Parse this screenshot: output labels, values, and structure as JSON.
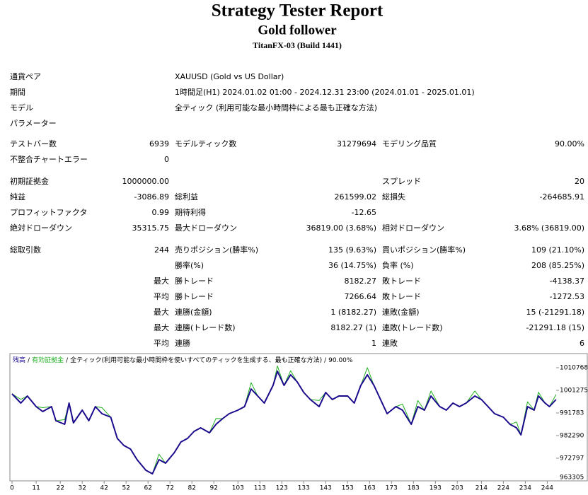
{
  "header": {
    "title": "Strategy Tester Report",
    "subtitle": "Gold follower",
    "build": "TitanFX-03 (Build 1441)"
  },
  "rows": [
    [
      "通貨ペア",
      null,
      "XAUUSD (Gold vs US Dollar)",
      null,
      null,
      null
    ],
    [
      "期間",
      null,
      "1時間足(H1) 2024.01.02 01:00 - 2024.12.31 23:00 (2024.01.01 - 2025.01.01)",
      null,
      null,
      null
    ],
    [
      "モデル",
      null,
      "全ティック (利用可能な最小時間枠による最も正確な方法)",
      null,
      null,
      null
    ],
    [
      "パラメーター",
      null,
      null,
      null,
      null,
      null
    ],
    [
      "テストバー数",
      "6939",
      "モデルティック数",
      "31279694",
      "モデリング品質",
      "90.00%"
    ],
    [
      "不整合チャートエラー",
      "0",
      null,
      null,
      null,
      null
    ],
    [
      "初期証拠金",
      "1000000.00",
      null,
      null,
      "スプレッド",
      "20"
    ],
    [
      "純益",
      "-3086.89",
      "総利益",
      "261599.02",
      "総損失",
      "-264685.91"
    ],
    [
      "プロフィットファクタ",
      "0.99",
      "期待利得",
      "-12.65",
      null,
      null
    ],
    [
      "絶対ドローダウン",
      "35315.75",
      "最大ドローダウン",
      "36819.00 (3.68%)",
      "相対ドローダウン",
      "3.68% (36819.00)"
    ],
    [
      "総取引数",
      "244",
      "売りポジション(勝率%)",
      "135 (9.63%)",
      "買いポジション(勝率%)",
      "109 (21.10%)"
    ],
    [
      null,
      null,
      "勝率(%)",
      "36 (14.75%)",
      "負率 (%)",
      "208 (85.25%)"
    ],
    [
      null,
      "最大",
      "勝トレード",
      "8182.27",
      "敗トレード",
      "-4138.37"
    ],
    [
      null,
      "平均",
      "勝トレード",
      "7266.64",
      "敗トレード",
      "-1272.53"
    ],
    [
      null,
      "最大",
      "連勝(金額)",
      "1 (8182.27)",
      "連敗(金額)",
      "15 (-21291.18)"
    ],
    [
      null,
      "最大",
      "連勝(トレード数)",
      "8182.27 (1)",
      "連敗(トレード数)",
      "-21291.18 (15)"
    ],
    [
      null,
      "平均",
      "連勝",
      "1",
      "連敗",
      "6"
    ]
  ],
  "chart_data": {
    "type": "line",
    "legend_separator": "/",
    "legend_description": "全ティック(利用可能な最小時間枠を使いすべてのティックを生成する、最も正確な方法)",
    "legend_quality": "90.00%",
    "x": [
      0,
      4,
      7,
      11,
      14,
      18,
      20,
      24,
      26,
      28,
      32,
      35,
      38,
      41,
      45,
      48,
      51,
      54,
      57,
      61,
      64,
      67,
      70,
      74,
      77,
      80,
      83,
      86,
      90,
      93,
      96,
      99,
      103,
      106,
      109,
      112,
      115,
      119,
      121,
      124,
      127,
      130,
      133,
      136,
      140,
      143,
      146,
      149,
      153,
      156,
      159,
      162,
      165,
      168,
      171,
      175,
      178,
      182,
      185,
      188,
      191,
      195,
      198,
      201,
      204,
      207,
      211,
      214,
      217,
      220,
      224,
      227,
      230,
      232,
      235,
      238,
      240,
      243,
      245,
      248
    ],
    "series": [
      {
        "name": "残高",
        "color": "#1a0a8c",
        "values": [
          999787,
          995931,
          998897,
          994448,
          992372,
          994448,
          988516,
          987033,
          995931,
          987626,
          992965,
          988516,
          994448,
          991482,
          989999,
          981101,
          978135,
          976652,
          972203,
          967754,
          966271,
          972203,
          970720,
          975169,
          979618,
          981101,
          984067,
          985550,
          983474,
          987033,
          989406,
          991482,
          992965,
          994448,
          1001863,
          998897,
          995931,
          1003346,
          1009278,
          1003346,
          1007795,
          1004829,
          1000380,
          997414,
          994448,
          1000380,
          997414,
          998897,
          998897,
          995931,
          1003346,
          1007795,
          1003346,
          997414,
          991482,
          994448,
          992965,
          987033,
          994448,
          992965,
          998897,
          994448,
          992965,
          995931,
          994448,
          995931,
          998897,
          997414,
          994448,
          991482,
          989999,
          987033,
          985550,
          982584,
          994448,
          992965,
          998897,
          995931,
          994448,
          997414
        ]
      },
      {
        "name": "有効証拠金",
        "color": "#22b022",
        "values": [
          999787,
          997500,
          998897,
          994448,
          994000,
          994448,
          988516,
          989000,
          995931,
          987626,
          992965,
          988516,
          994448,
          994000,
          989999,
          981101,
          978135,
          976652,
          972203,
          967754,
          966271,
          974500,
          970720,
          975169,
          979618,
          981101,
          984067,
          985550,
          983474,
          989500,
          989406,
          991482,
          992965,
          994448,
          1004500,
          998897,
          995931,
          1003346,
          1011500,
          1003346,
          1009500,
          1004829,
          1000380,
          997414,
          997000,
          1000380,
          997414,
          998897,
          998897,
          995931,
          1003346,
          1010800,
          1003346,
          997414,
          991482,
          994448,
          995500,
          987033,
          997000,
          992965,
          1001000,
          994448,
          992965,
          995931,
          994448,
          995931,
          1001000,
          997414,
          994448,
          991482,
          989999,
          987033,
          988000,
          982584,
          996500,
          992965,
          1000500,
          995931,
          994448,
          999500
        ]
      }
    ],
    "xlim": [
      0,
      250
    ],
    "xticks": [
      0,
      11,
      22,
      32,
      42,
      52,
      62,
      72,
      82,
      92,
      103,
      113,
      123,
      133,
      143,
      153,
      163,
      173,
      183,
      193,
      203,
      214,
      224,
      234,
      244
    ],
    "ylim": [
      963305,
      1016700
    ],
    "yticks": [
      963305,
      972797,
      982290,
      991783,
      1001275,
      1010768
    ]
  }
}
